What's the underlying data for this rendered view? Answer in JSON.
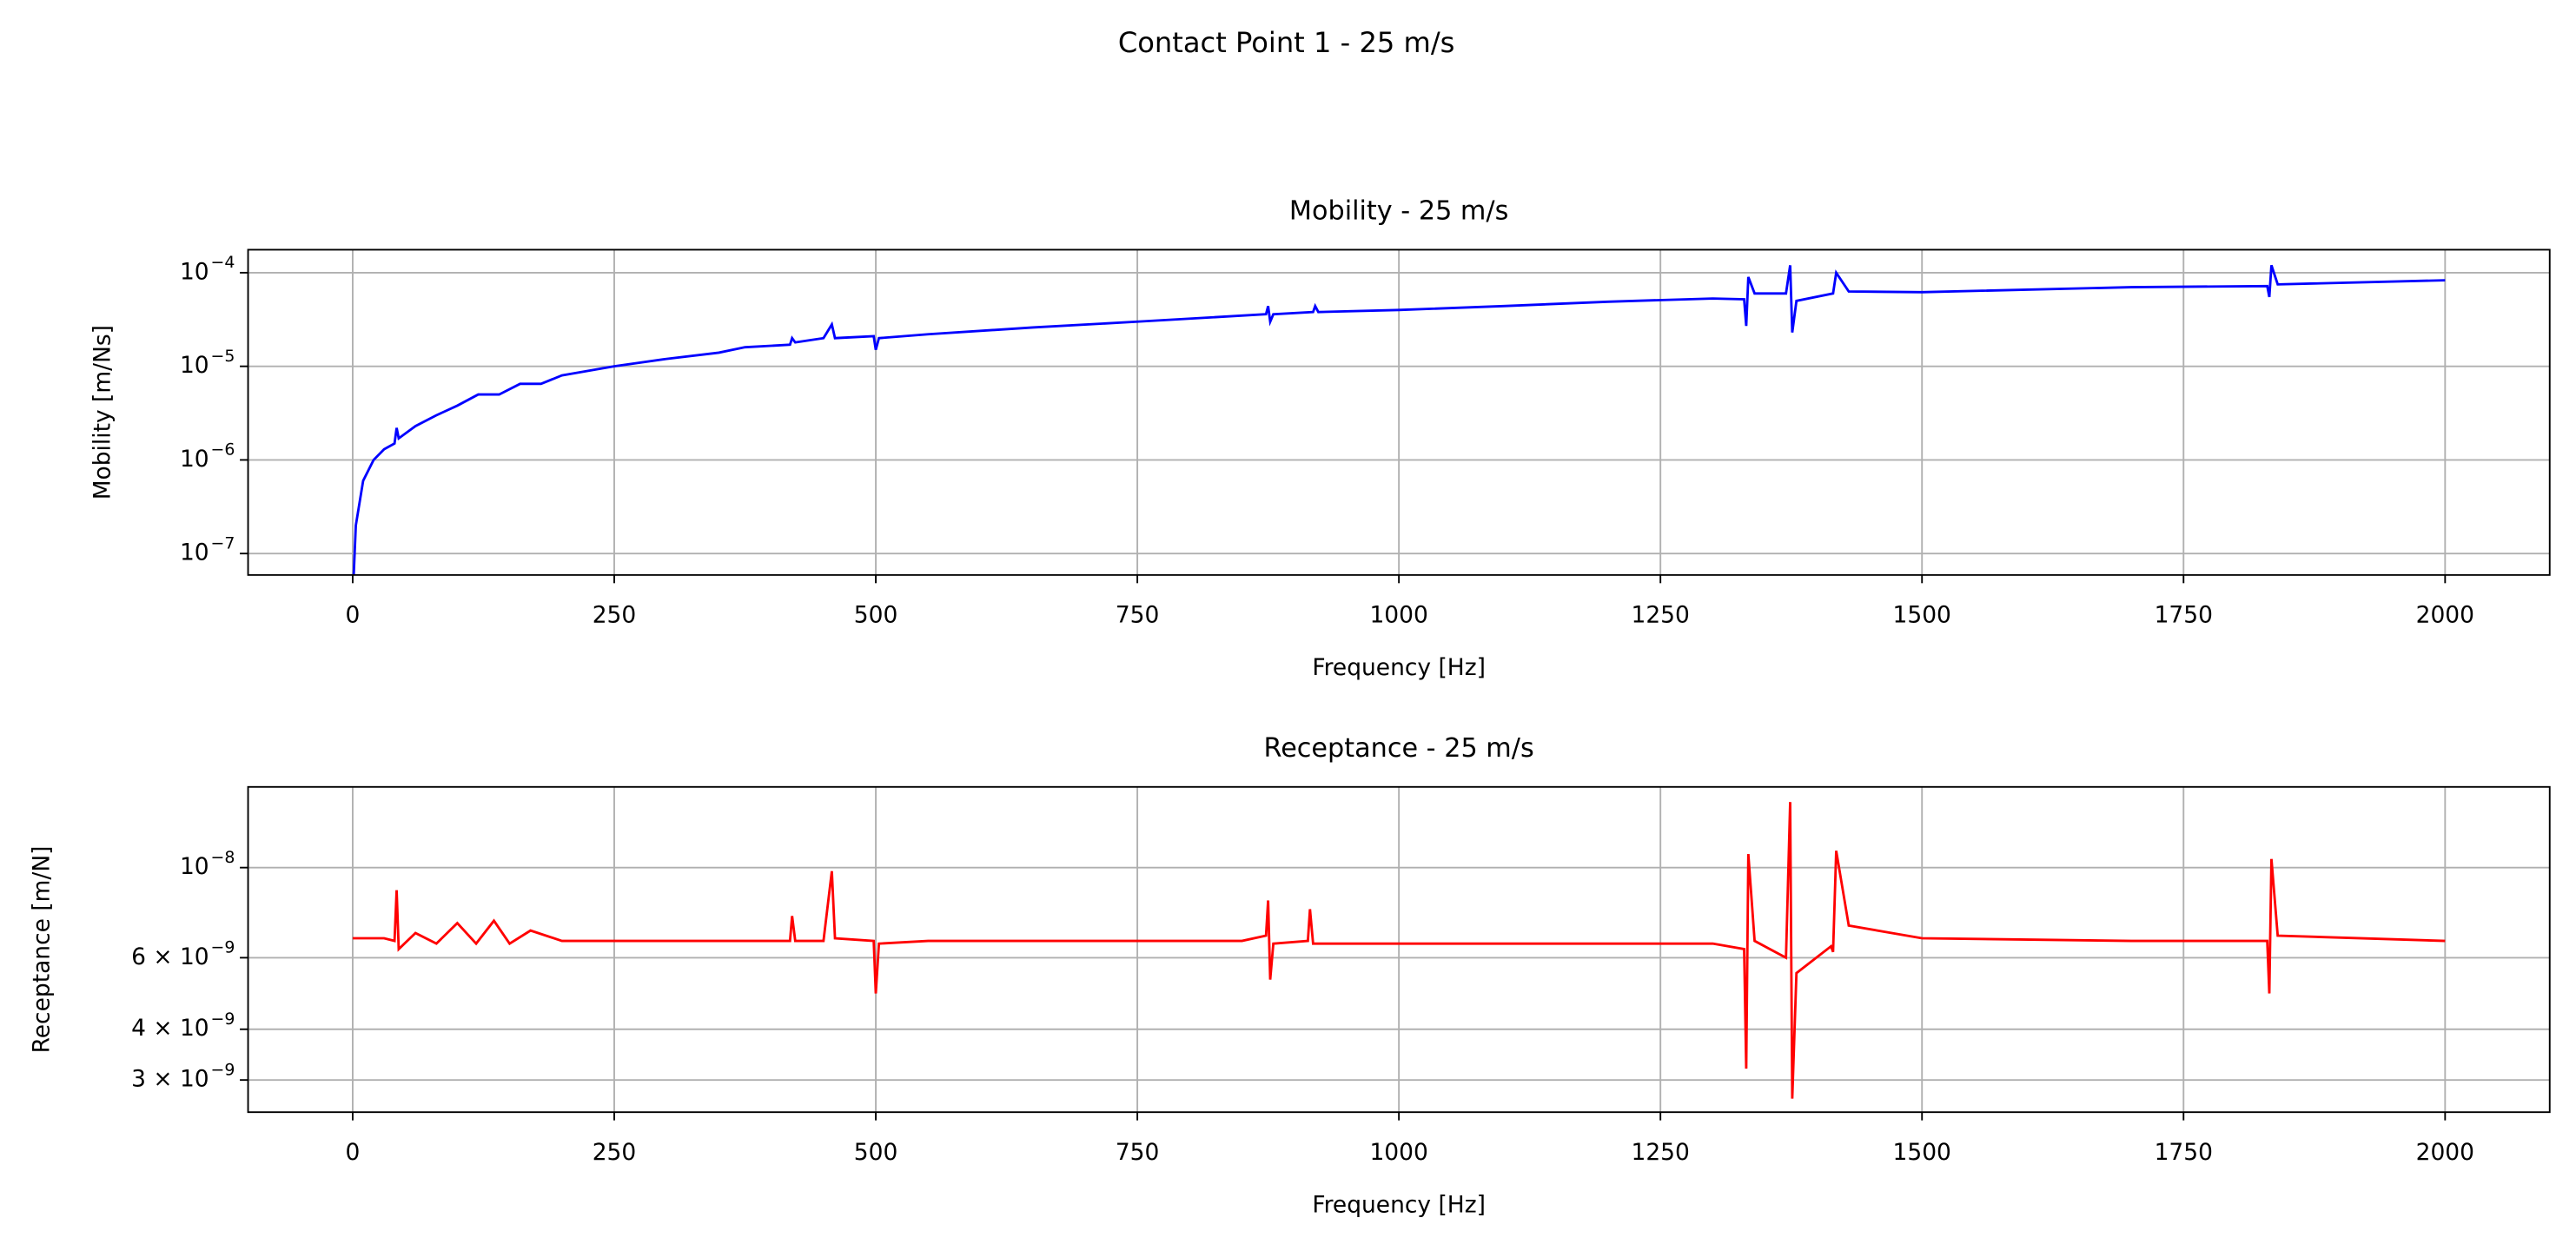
{
  "title": "Contact Point 1 - 25 m/s",
  "chart_data": [
    {
      "type": "line",
      "title": "Mobility - 25 m/s",
      "xlabel": "Frequency [Hz]",
      "ylabel": "Mobility [m/Ns]",
      "yscale": "log",
      "grid": true,
      "xlim": [
        -100,
        2100
      ],
      "xticks": [
        0,
        250,
        500,
        750,
        1000,
        1250,
        1500,
        1750,
        2000
      ],
      "ylim": [
        5.9e-08,
        0.000176
      ],
      "yticks": [
        {
          "value": 1e-07,
          "label": "10",
          "exponent": "−7"
        },
        {
          "value": 1e-06,
          "label": "10",
          "exponent": "−6"
        },
        {
          "value": 1e-05,
          "label": "10",
          "exponent": "−5"
        },
        {
          "value": 0.0001,
          "label": "10",
          "exponent": "−4"
        }
      ],
      "series": [
        {
          "color": "#0000ff",
          "x": [
            1,
            3,
            10,
            20,
            30,
            40,
            42,
            44,
            60,
            80,
            100,
            120,
            140,
            160,
            180,
            200,
            250,
            300,
            350,
            375,
            418,
            420,
            423,
            450,
            458,
            461,
            498,
            500,
            503,
            550,
            650,
            750,
            873,
            875,
            877,
            880,
            918,
            920,
            923,
            1000,
            1100,
            1200,
            1300,
            1330,
            1332,
            1334,
            1340,
            1370,
            1374,
            1376,
            1380,
            1415,
            1418,
            1430,
            1500,
            1700,
            1830,
            1832,
            1834,
            1840,
            2000
          ],
          "values": [
            6e-08,
            2e-07,
            6e-07,
            1e-06,
            1.3e-06,
            1.5e-06,
            2.2e-06,
            1.7e-06,
            2.3e-06,
            3e-06,
            3.8e-06,
            5e-06,
            5e-06,
            6.5e-06,
            6.5e-06,
            8e-06,
            1e-05,
            1.2e-05,
            1.4e-05,
            1.6e-05,
            1.7e-05,
            2e-05,
            1.8e-05,
            2e-05,
            2.8e-05,
            2e-05,
            2.1e-05,
            1.5e-05,
            2e-05,
            2.2e-05,
            2.6e-05,
            3e-05,
            3.6e-05,
            4.4e-05,
            3e-05,
            3.6e-05,
            3.8e-05,
            4.4e-05,
            3.8e-05,
            4e-05,
            4.4e-05,
            4.9e-05,
            5.3e-05,
            5.2e-05,
            2.7e-05,
            9e-05,
            6e-05,
            6e-05,
            0.00012,
            2.3e-05,
            5e-05,
            6e-05,
            0.0001,
            6.3e-05,
            6.2e-05,
            7e-05,
            7.2e-05,
            5.5e-05,
            0.00012,
            7.5e-05,
            8.3e-05
          ]
        }
      ]
    },
    {
      "type": "line",
      "title": "Receptance - 25 m/s",
      "xlabel": "Frequency [Hz]",
      "ylabel": "Receptance [m/N]",
      "yscale": "log",
      "grid": true,
      "xlim": [
        -100,
        2100
      ],
      "xticks": [
        0,
        250,
        500,
        750,
        1000,
        1250,
        1500,
        1750,
        2000
      ],
      "ylim": [
        2.5e-09,
        1.58e-08
      ],
      "yticks": [
        {
          "value": 3e-09,
          "label": "3 × 10",
          "exponent": "−9"
        },
        {
          "value": 4e-09,
          "label": "4 × 10",
          "exponent": "−9"
        },
        {
          "value": 6e-09,
          "label": "6 × 10",
          "exponent": "−9"
        },
        {
          "value": 1e-08,
          "label": "10",
          "exponent": "−8"
        }
      ],
      "series": [
        {
          "color": "#ff0000",
          "x": [
            0,
            30,
            40,
            42,
            44,
            60,
            80,
            100,
            118,
            135,
            150,
            170,
            200,
            250,
            300,
            400,
            418,
            420,
            423,
            450,
            458,
            461,
            498,
            500,
            503,
            550,
            700,
            850,
            873,
            875,
            877,
            880,
            913,
            915,
            918,
            1000,
            1200,
            1300,
            1330,
            1332,
            1334,
            1340,
            1370,
            1374,
            1376,
            1380,
            1413,
            1415,
            1418,
            1430,
            1500,
            1700,
            1830,
            1832,
            1834,
            1840,
            2000
          ],
          "values": [
            6.7e-09,
            6.7e-09,
            6.6e-09,
            8.8e-09,
            6.3e-09,
            6.9e-09,
            6.5e-09,
            7.3e-09,
            6.5e-09,
            7.4e-09,
            6.5e-09,
            7e-09,
            6.6e-09,
            6.6e-09,
            6.6e-09,
            6.6e-09,
            6.6e-09,
            7.6e-09,
            6.6e-09,
            6.6e-09,
            9.8e-09,
            6.7e-09,
            6.6e-09,
            4.9e-09,
            6.5e-09,
            6.6e-09,
            6.6e-09,
            6.6e-09,
            6.8e-09,
            8.3e-09,
            5.3e-09,
            6.5e-09,
            6.6e-09,
            7.9e-09,
            6.5e-09,
            6.5e-09,
            6.5e-09,
            6.5e-09,
            6.3e-09,
            3.2e-09,
            1.08e-08,
            6.6e-09,
            6e-09,
            1.45e-08,
            2.7e-09,
            5.5e-09,
            6.4e-09,
            6.2e-09,
            1.1e-08,
            7.2e-09,
            6.7e-09,
            6.6e-09,
            6.6e-09,
            4.9e-09,
            1.05e-08,
            6.8e-09,
            6.6e-09
          ]
        }
      ]
    }
  ]
}
